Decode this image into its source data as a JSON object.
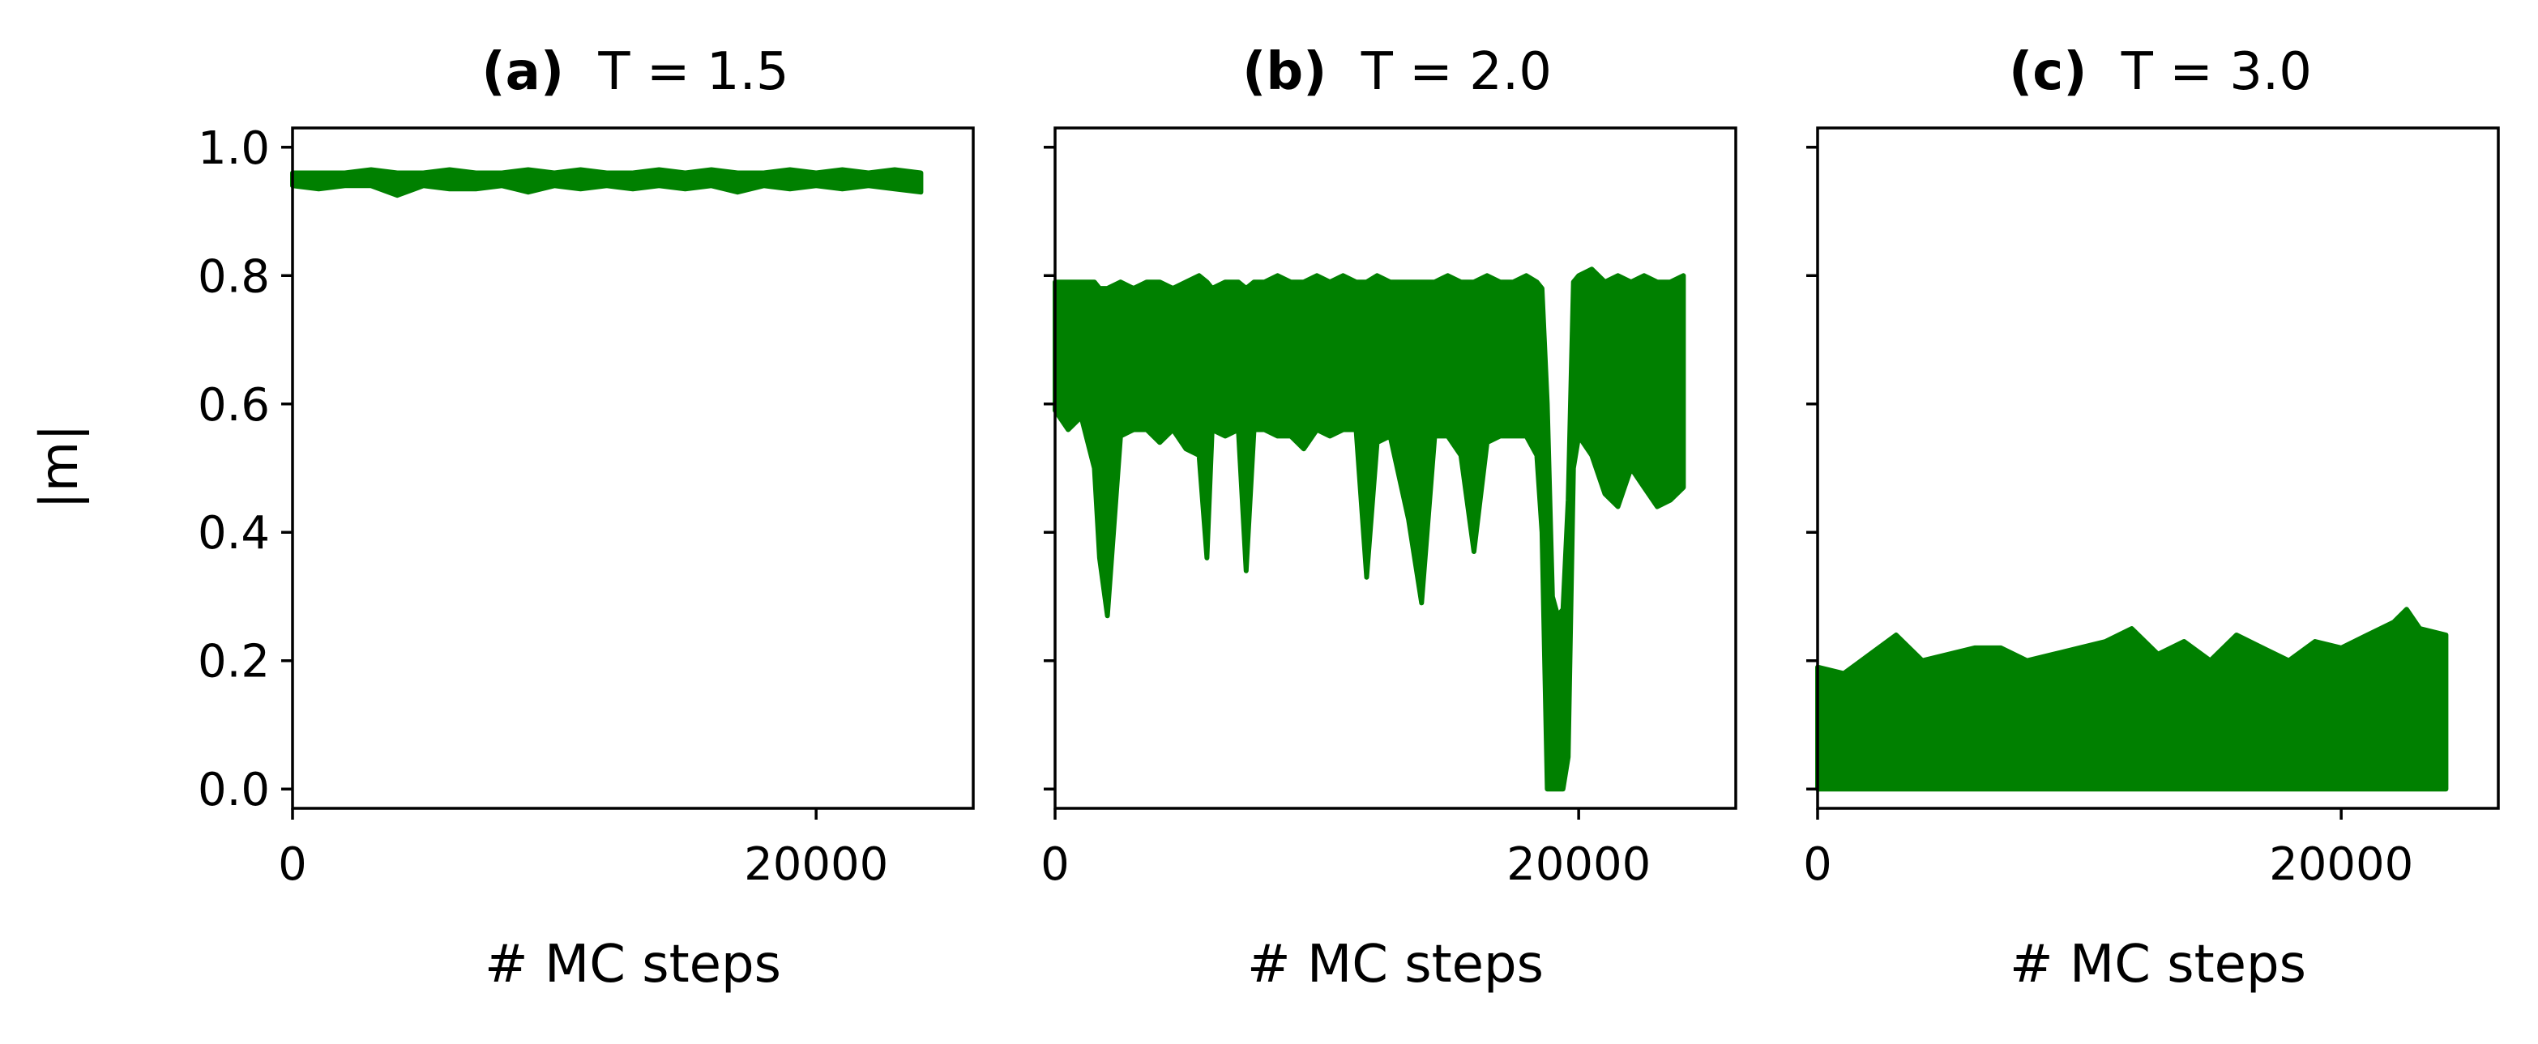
{
  "figure": {
    "ylabel": "|m|",
    "xlabel": "# MC steps"
  },
  "chart_data": [
    {
      "type": "line",
      "panel": "(a)",
      "title_bold": "(a)",
      "title_rest": "T = 1.5",
      "xlabel": "# MC steps",
      "ylabel": "|m|",
      "xlim": [
        0,
        26000
      ],
      "ylim": [
        -0.03,
        1.03
      ],
      "xticks": [
        0,
        20000
      ],
      "yticks": [
        0.0,
        0.2,
        0.4,
        0.6,
        0.8,
        1.0
      ],
      "ytick_labels": [
        "0.0",
        "0.2",
        "0.4",
        "0.6",
        "0.8",
        "1.0"
      ],
      "grid": false,
      "series": [
        {
          "color": "#008000",
          "x": [
            0,
            1000,
            2000,
            3000,
            4000,
            5000,
            6000,
            7000,
            8000,
            9000,
            10000,
            11000,
            12000,
            13000,
            14000,
            15000,
            16000,
            17000,
            18000,
            19000,
            20000,
            21000,
            22000,
            23000,
            24000
          ],
          "y_high": [
            0.96,
            0.96,
            0.96,
            0.965,
            0.96,
            0.96,
            0.965,
            0.96,
            0.96,
            0.965,
            0.96,
            0.965,
            0.96,
            0.96,
            0.965,
            0.96,
            0.965,
            0.96,
            0.96,
            0.965,
            0.96,
            0.965,
            0.96,
            0.965,
            0.96
          ],
          "y_low": [
            0.94,
            0.935,
            0.94,
            0.94,
            0.925,
            0.94,
            0.935,
            0.935,
            0.94,
            0.93,
            0.94,
            0.935,
            0.94,
            0.935,
            0.94,
            0.935,
            0.94,
            0.93,
            0.94,
            0.935,
            0.94,
            0.935,
            0.94,
            0.935,
            0.93
          ]
        }
      ]
    },
    {
      "type": "line",
      "panel": "(b)",
      "title_bold": "(b)",
      "title_rest": "T = 2.0",
      "xlabel": "# MC steps",
      "xlim": [
        0,
        26000
      ],
      "ylim": [
        -0.03,
        1.03
      ],
      "xticks": [
        0,
        20000
      ],
      "yticks": [
        0.0,
        0.2,
        0.4,
        0.6,
        0.8,
        1.0
      ],
      "grid": false,
      "series": [
        {
          "color": "#008000",
          "x": [
            0,
            500,
            1000,
            1500,
            1700,
            2000,
            2500,
            3000,
            3500,
            4000,
            4500,
            5000,
            5500,
            5800,
            6000,
            6500,
            7000,
            7300,
            7600,
            8000,
            8500,
            9000,
            9500,
            10000,
            10500,
            11000,
            11500,
            11900,
            12300,
            12800,
            13500,
            14000,
            14500,
            15000,
            15500,
            16000,
            16500,
            17000,
            17500,
            18000,
            18400,
            18600,
            18800,
            19000,
            19200,
            19400,
            19600,
            19800,
            20000,
            20500,
            21000,
            21500,
            22000,
            22500,
            23000,
            23500,
            24000
          ],
          "y_high": [
            0.79,
            0.79,
            0.79,
            0.79,
            0.78,
            0.78,
            0.79,
            0.78,
            0.79,
            0.79,
            0.78,
            0.79,
            0.8,
            0.79,
            0.78,
            0.79,
            0.79,
            0.78,
            0.79,
            0.79,
            0.8,
            0.79,
            0.79,
            0.8,
            0.79,
            0.8,
            0.79,
            0.79,
            0.8,
            0.79,
            0.79,
            0.79,
            0.79,
            0.8,
            0.79,
            0.79,
            0.8,
            0.79,
            0.79,
            0.8,
            0.79,
            0.78,
            0.6,
            0.3,
            0.27,
            0.28,
            0.45,
            0.79,
            0.8,
            0.81,
            0.79,
            0.8,
            0.79,
            0.8,
            0.79,
            0.79,
            0.8
          ],
          "y_low": [
            0.59,
            0.56,
            0.58,
            0.5,
            0.36,
            0.27,
            0.55,
            0.56,
            0.56,
            0.54,
            0.56,
            0.53,
            0.52,
            0.36,
            0.56,
            0.55,
            0.56,
            0.34,
            0.56,
            0.56,
            0.55,
            0.55,
            0.53,
            0.56,
            0.55,
            0.56,
            0.56,
            0.33,
            0.54,
            0.55,
            0.42,
            0.29,
            0.55,
            0.55,
            0.52,
            0.37,
            0.54,
            0.55,
            0.55,
            0.55,
            0.52,
            0.4,
            0.0,
            0.0,
            0.0,
            0.0,
            0.05,
            0.5,
            0.55,
            0.52,
            0.46,
            0.44,
            0.5,
            0.47,
            0.44,
            0.45,
            0.47
          ]
        }
      ]
    },
    {
      "type": "line",
      "panel": "(c)",
      "title_bold": "(c)",
      "title_rest": "T = 3.0",
      "xlabel": "# MC steps",
      "xlim": [
        0,
        26000
      ],
      "ylim": [
        -0.03,
        1.03
      ],
      "xticks": [
        0,
        20000
      ],
      "yticks": [
        0.0,
        0.2,
        0.4,
        0.6,
        0.8,
        1.0
      ],
      "grid": false,
      "series": [
        {
          "color": "#008000",
          "x": [
            0,
            1000,
            2000,
            3000,
            4000,
            5000,
            6000,
            7000,
            8000,
            9000,
            10000,
            11000,
            12000,
            13000,
            14000,
            15000,
            16000,
            17000,
            18000,
            19000,
            20000,
            21000,
            22000,
            22500,
            23000,
            24000
          ],
          "y_high": [
            0.19,
            0.18,
            0.21,
            0.24,
            0.2,
            0.21,
            0.22,
            0.22,
            0.2,
            0.21,
            0.22,
            0.23,
            0.25,
            0.21,
            0.23,
            0.2,
            0.24,
            0.22,
            0.2,
            0.23,
            0.22,
            0.24,
            0.26,
            0.28,
            0.25,
            0.24
          ],
          "y_low": [
            0.0,
            0.0,
            0.0,
            0.0,
            0.0,
            0.0,
            0.0,
            0.0,
            0.0,
            0.0,
            0.0,
            0.0,
            0.0,
            0.0,
            0.0,
            0.0,
            0.0,
            0.0,
            0.0,
            0.0,
            0.0,
            0.0,
            0.0,
            0.0,
            0.0,
            0.0
          ]
        }
      ]
    }
  ]
}
